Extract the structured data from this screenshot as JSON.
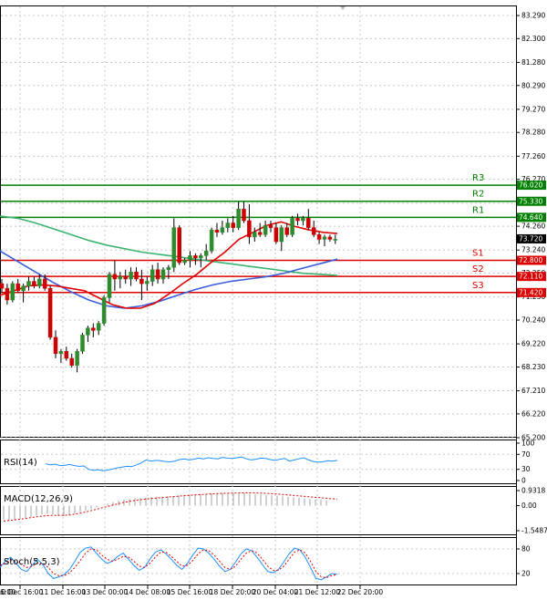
{
  "chart_data": {
    "type": "candlestick",
    "x_ticks": [
      "10 Dec 16:00",
      "11 Dec 16:00",
      "13 Dec 00:00",
      "14 Dec 08:00",
      "15 Dec 16:00",
      "18 Dec 20:00",
      "20 Dec 04:00",
      "21 Dec 12:00",
      "22 Dec 20:00"
    ],
    "x_tick_partial": "6:00",
    "y_ticks": [
      "83.290",
      "82.300",
      "81.280",
      "80.290",
      "79.270",
      "78.280",
      "77.260",
      "76.270",
      "75.250",
      "74.260",
      "73.240",
      "72.250",
      "71.230",
      "70.240",
      "69.220",
      "68.230",
      "67.210",
      "66.220",
      "65.200"
    ],
    "ylim": [
      65.2,
      83.29
    ],
    "current_price": "73.720",
    "levels": [
      {
        "name": "R3",
        "value": 76.02,
        "tag": "76.020",
        "color": "#008000"
      },
      {
        "name": "R2",
        "value": 75.33,
        "tag": "75.330",
        "color": "#008000"
      },
      {
        "name": "R1",
        "value": 74.64,
        "tag": "74.640",
        "color": "#008000"
      },
      {
        "name": "S1",
        "value": 72.8,
        "tag": "72.800",
        "color": "#dd0000"
      },
      {
        "name": "S2",
        "value": 72.11,
        "tag": "72.110",
        "color": "#dd0000"
      },
      {
        "name": "S3",
        "value": 71.42,
        "tag": "71.420",
        "color": "#dd0000"
      }
    ],
    "candles": [
      [
        71.8,
        72.0,
        71.4,
        71.6
      ],
      [
        71.6,
        71.8,
        70.9,
        71.1
      ],
      [
        71.1,
        71.9,
        71.0,
        71.8
      ],
      [
        71.8,
        72.0,
        71.4,
        71.5
      ],
      [
        71.5,
        71.8,
        71.0,
        71.7
      ],
      [
        71.7,
        72.1,
        71.5,
        71.9
      ],
      [
        71.9,
        72.1,
        71.6,
        71.7
      ],
      [
        71.7,
        72.2,
        71.6,
        72.0
      ],
      [
        72.0,
        72.2,
        71.5,
        71.6
      ],
      [
        71.6,
        71.7,
        69.4,
        69.5
      ],
      [
        69.5,
        69.8,
        68.6,
        68.8
      ],
      [
        68.8,
        69.0,
        68.4,
        68.9
      ],
      [
        68.9,
        69.1,
        68.5,
        68.6
      ],
      [
        68.6,
        68.8,
        68.2,
        68.3
      ],
      [
        68.3,
        69.0,
        68.0,
        68.9
      ],
      [
        68.9,
        69.7,
        68.8,
        69.6
      ],
      [
        69.6,
        70.0,
        69.3,
        69.9
      ],
      [
        69.9,
        70.1,
        69.5,
        69.8
      ],
      [
        69.8,
        70.2,
        69.6,
        70.1
      ],
      [
        70.1,
        71.3,
        70.0,
        71.2
      ],
      [
        71.2,
        72.3,
        71.0,
        72.2
      ],
      [
        72.2,
        72.8,
        71.5,
        72.0
      ],
      [
        72.0,
        72.3,
        71.6,
        72.1
      ],
      [
        72.1,
        72.4,
        71.8,
        72.0
      ],
      [
        72.0,
        72.5,
        71.7,
        72.3
      ],
      [
        72.3,
        72.5,
        71.9,
        72.0
      ],
      [
        72.0,
        72.4,
        71.1,
        71.8
      ],
      [
        71.8,
        72.1,
        71.5,
        71.9
      ],
      [
        71.9,
        72.6,
        71.7,
        72.4
      ],
      [
        72.4,
        72.7,
        71.8,
        72.0
      ],
      [
        72.0,
        72.5,
        71.8,
        72.4
      ],
      [
        72.4,
        72.6,
        72.0,
        72.5
      ],
      [
        72.5,
        74.6,
        72.3,
        74.2
      ],
      [
        74.2,
        74.3,
        72.6,
        72.7
      ],
      [
        72.7,
        72.9,
        72.6,
        72.8
      ],
      [
        72.8,
        73.2,
        72.5,
        73.0
      ],
      [
        73.0,
        73.1,
        72.6,
        72.9
      ],
      [
        72.9,
        73.1,
        72.5,
        73.0
      ],
      [
        73.0,
        73.5,
        72.8,
        73.2
      ],
      [
        73.2,
        74.2,
        73.1,
        74.1
      ],
      [
        74.1,
        74.4,
        73.8,
        74.0
      ],
      [
        74.0,
        74.5,
        73.9,
        74.2
      ],
      [
        74.2,
        74.6,
        74.0,
        74.4
      ],
      [
        74.4,
        74.7,
        74.0,
        74.2
      ],
      [
        74.2,
        75.3,
        74.1,
        75.0
      ],
      [
        75.0,
        75.3,
        74.4,
        74.5
      ],
      [
        74.5,
        75.2,
        73.5,
        73.8
      ],
      [
        73.8,
        74.2,
        73.6,
        74.0
      ],
      [
        74.0,
        74.4,
        73.8,
        73.9
      ],
      [
        73.9,
        74.5,
        73.8,
        74.3
      ],
      [
        74.3,
        74.5,
        74.0,
        74.2
      ],
      [
        74.2,
        74.4,
        73.5,
        73.6
      ],
      [
        73.6,
        74.3,
        73.2,
        74.2
      ],
      [
        74.2,
        74.4,
        73.8,
        73.9
      ],
      [
        73.9,
        74.7,
        73.8,
        74.6
      ],
      [
        74.6,
        74.8,
        74.3,
        74.5
      ],
      [
        74.5,
        74.7,
        74.3,
        74.6
      ],
      [
        74.6,
        75.0,
        74.1,
        74.2
      ],
      [
        74.2,
        74.5,
        73.8,
        73.9
      ],
      [
        73.9,
        74.0,
        73.5,
        73.7
      ],
      [
        73.7,
        73.9,
        73.4,
        73.8
      ],
      [
        73.8,
        73.9,
        73.6,
        73.7
      ],
      [
        73.7,
        73.9,
        73.5,
        73.7
      ]
    ],
    "ma_red": [
      71.3,
      71.5,
      71.7,
      71.75,
      71.7,
      71.6,
      71.5,
      71.2,
      70.9,
      70.75,
      70.75,
      70.95,
      71.35,
      71.8,
      72.2,
      72.7,
      73.15,
      73.7,
      74.0,
      74.3,
      74.45,
      74.25,
      74.1,
      74.0,
      73.95
    ],
    "ma_blue": [
      73.2,
      72.75,
      72.3,
      71.85,
      71.45,
      71.1,
      70.85,
      70.75,
      70.85,
      71.05,
      71.3,
      71.55,
      71.75,
      71.9,
      72.0,
      72.1,
      72.25,
      72.45,
      72.65,
      72.85
    ],
    "ma_green": [
      74.7,
      74.6,
      74.4,
      74.15,
      73.9,
      73.65,
      73.45,
      73.3,
      73.15,
      73.05,
      72.95,
      72.85,
      72.75,
      72.65,
      72.55,
      72.45,
      72.35,
      72.25,
      72.2,
      72.15
    ],
    "rsi": {
      "label": "RSI(14)",
      "ticks": [
        "100",
        "70",
        "30",
        "0"
      ],
      "values": [
        45,
        42,
        44,
        40,
        41,
        43,
        40,
        38,
        39,
        30,
        27,
        29,
        26,
        28,
        31,
        34,
        36,
        38,
        37,
        42,
        47,
        55,
        52,
        54,
        53,
        51,
        50,
        52,
        56,
        58,
        55,
        57,
        60,
        58,
        61,
        59,
        58,
        62,
        60,
        59,
        61,
        63,
        58,
        55,
        57,
        60,
        59,
        56,
        54,
        57,
        59,
        52,
        55,
        58,
        61,
        55,
        51,
        49,
        50,
        53,
        52,
        54
      ]
    },
    "macd": {
      "label": "MACD(12,26,9)",
      "ticks": [
        "0.9318",
        "0.00",
        "-1.5487"
      ],
      "hist": [
        -0.85,
        -0.95,
        -0.9,
        -0.8,
        -0.75,
        -0.7,
        -0.62,
        -0.55,
        -0.5,
        -0.55,
        -0.62,
        -0.65,
        -0.6,
        -0.5,
        -0.4,
        -0.3,
        -0.2,
        -0.1,
        0.0,
        0.12,
        0.22,
        0.3,
        0.38,
        0.42,
        0.45,
        0.48,
        0.5,
        0.52,
        0.55,
        0.56,
        0.58,
        0.6,
        0.62,
        0.66,
        0.68,
        0.7,
        0.72,
        0.74,
        0.76,
        0.77,
        0.78,
        0.78,
        0.78,
        0.77,
        0.76,
        0.74,
        0.72,
        0.69,
        0.66,
        0.63,
        0.6,
        0.57,
        0.54,
        0.51,
        0.48,
        0.45,
        0.42,
        0.39,
        0.36,
        0.33
      ],
      "signal": [
        -0.95,
        -0.92,
        -0.88,
        -0.83,
        -0.78,
        -0.73,
        -0.68,
        -0.64,
        -0.61,
        -0.6,
        -0.6,
        -0.59,
        -0.56,
        -0.5,
        -0.43,
        -0.35,
        -0.26,
        -0.17,
        -0.08,
        0.01,
        0.1,
        0.18,
        0.25,
        0.31,
        0.36,
        0.4,
        0.44,
        0.47,
        0.5,
        0.53,
        0.56,
        0.59,
        0.62,
        0.64,
        0.67,
        0.69,
        0.71,
        0.73,
        0.75,
        0.76,
        0.77,
        0.78,
        0.79,
        0.79,
        0.79,
        0.78,
        0.77,
        0.75,
        0.73,
        0.7,
        0.67,
        0.64,
        0.61,
        0.58,
        0.55,
        0.52,
        0.49,
        0.46,
        0.43,
        0.4
      ]
    },
    "stoch": {
      "label": "Stoch(5,5,3)",
      "ticks": [
        "80",
        "20"
      ],
      "k": [
        35,
        50,
        60,
        45,
        30,
        25,
        40,
        55,
        42,
        20,
        8,
        12,
        18,
        30,
        50,
        72,
        82,
        85,
        70,
        55,
        45,
        50,
        62,
        70,
        55,
        40,
        28,
        35,
        55,
        72,
        78,
        68,
        55,
        40,
        30,
        45,
        65,
        82,
        80,
        70,
        55,
        38,
        25,
        30,
        48,
        68,
        80,
        76,
        60,
        42,
        25,
        22,
        30,
        48,
        68,
        82,
        78,
        60,
        35,
        8,
        5,
        12,
        20,
        18
      ],
      "d": [
        40,
        45,
        52,
        50,
        42,
        35,
        38,
        45,
        45,
        35,
        20,
        15,
        15,
        22,
        35,
        52,
        70,
        80,
        78,
        65,
        55,
        50,
        55,
        62,
        60,
        50,
        38,
        35,
        45,
        60,
        72,
        72,
        62,
        50,
        38,
        40,
        52,
        68,
        78,
        76,
        65,
        50,
        35,
        30,
        38,
        55,
        70,
        76,
        70,
        55,
        38,
        28,
        28,
        38,
        55,
        72,
        78,
        70,
        50,
        25,
        12,
        10,
        15,
        18
      ]
    }
  }
}
